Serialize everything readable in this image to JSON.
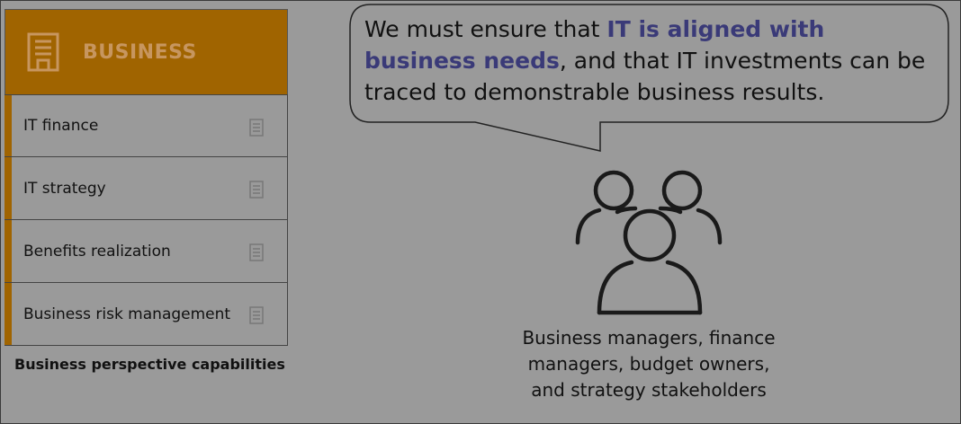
{
  "panel": {
    "header_label": "BUSINESS",
    "header_icon": "building-icon",
    "items": [
      {
        "label": "IT finance",
        "icon": "document-icon"
      },
      {
        "label": "IT strategy",
        "icon": "document-icon"
      },
      {
        "label": "Benefits realization",
        "icon": "document-icon"
      },
      {
        "label": "Business risk management",
        "icon": "document-icon"
      }
    ],
    "caption": "Business perspective capabilities"
  },
  "bubble": {
    "text_before": "We must ensure that ",
    "highlight": "IT is aligned with business needs",
    "text_after": ", and that IT investments can be traced to demonstrable business results."
  },
  "stakeholders": {
    "icon": "people-group-icon",
    "caption_lines": [
      "Business managers, finance",
      "managers, budget owners,",
      "and strategy stakeholders"
    ]
  },
  "colors": {
    "background": "#9a9a9a",
    "accent": "#a06400",
    "highlight_text": "#3a3a78"
  }
}
